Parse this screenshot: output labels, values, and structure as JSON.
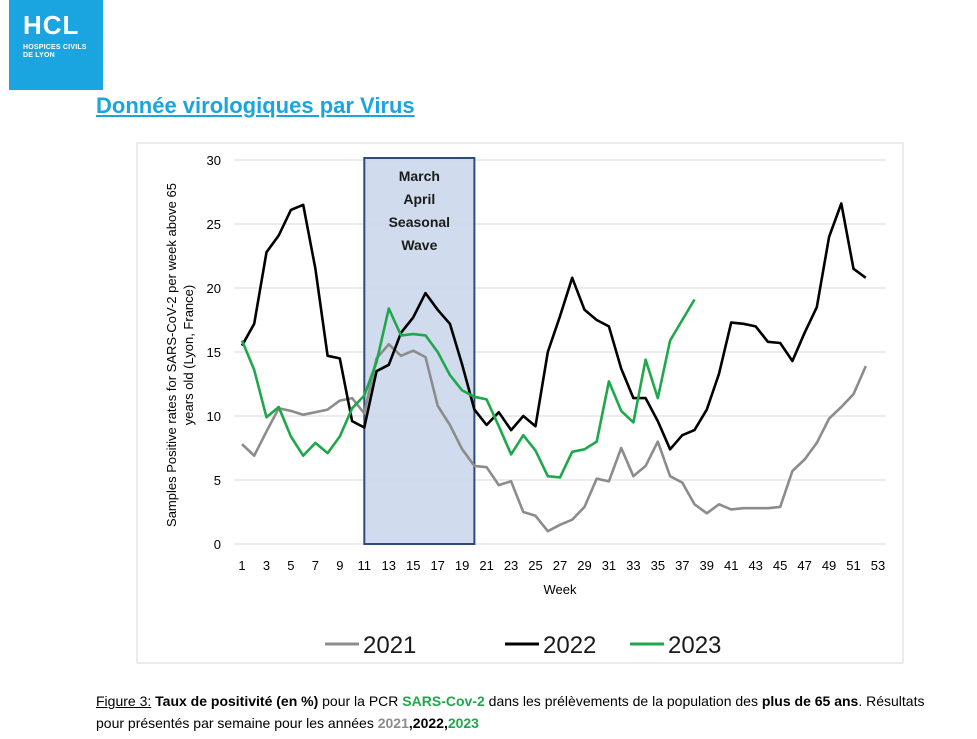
{
  "logo": {
    "main": "HCL",
    "sub_line1": "HOSPICES CIVILS",
    "sub_line2": "DE LYON"
  },
  "title": "Donnée virologiques par Virus",
  "colors": {
    "s2021": "#8c8c8c",
    "s2022": "#000000",
    "s2023": "#1fa84b",
    "wave_fill": "#c8d6ea",
    "wave_border": "#2e4a7a",
    "logo_bg": "#1aa5e0"
  },
  "chart_data": {
    "type": "line",
    "ylabel_line1": "Samples Positive rates for SARS-CoV-2 per week above 65",
    "ylabel_line2": "years old (Lyon, France)",
    "xlabel": "Week",
    "ylim": [
      0,
      30
    ],
    "yticks": [
      "0",
      "5",
      "10",
      "15",
      "20",
      "25",
      "30"
    ],
    "xlim": [
      1,
      53
    ],
    "xticks": [
      "1",
      "3",
      "5",
      "7",
      "9",
      "11",
      "13",
      "15",
      "17",
      "19",
      "21",
      "23",
      "25",
      "27",
      "29",
      "31",
      "33",
      "35",
      "37",
      "39",
      "41",
      "43",
      "45",
      "47",
      "49",
      "51",
      "53"
    ],
    "grid": true,
    "annotation": {
      "lines": [
        "March",
        "April",
        "Seasonal",
        "Wave"
      ],
      "x_range": [
        11,
        20
      ],
      "y_range": [
        0,
        30
      ]
    },
    "series": [
      {
        "name": "2021",
        "x": [
          1,
          2,
          3,
          4,
          5,
          6,
          7,
          8,
          9,
          10,
          11,
          12,
          13,
          14,
          15,
          16,
          17,
          18,
          19,
          20,
          21,
          22,
          23,
          24,
          25,
          26,
          27,
          28,
          29,
          30,
          31,
          32,
          33,
          34,
          35,
          36,
          37,
          38,
          39,
          40,
          41,
          42,
          43,
          44,
          45,
          46,
          47,
          48,
          49,
          50,
          51,
          52
        ],
        "values": [
          7.8,
          6.9,
          8.8,
          10.6,
          10.4,
          10.1,
          10.3,
          10.5,
          11.2,
          11.4,
          10.2,
          14.5,
          15.6,
          14.7,
          15.1,
          14.6,
          10.8,
          9.3,
          7.4,
          6.1,
          6.0,
          4.6,
          4.9,
          2.5,
          2.2,
          1.0,
          1.5,
          1.9,
          2.9,
          5.1,
          4.9,
          7.5,
          5.3,
          6.1,
          8.0,
          5.3,
          4.8,
          3.1,
          2.4,
          3.1,
          2.7,
          2.8,
          2.8,
          2.8,
          2.9,
          5.7,
          6.6,
          7.9,
          9.8,
          10.7,
          11.7,
          13.9
        ]
      },
      {
        "name": "2022",
        "x": [
          1,
          2,
          3,
          4,
          5,
          6,
          7,
          8,
          9,
          10,
          11,
          12,
          13,
          14,
          15,
          16,
          17,
          18,
          19,
          20,
          21,
          22,
          23,
          24,
          25,
          26,
          27,
          28,
          29,
          30,
          31,
          32,
          33,
          34,
          35,
          36,
          37,
          38,
          39,
          40,
          41,
          42,
          43,
          44,
          45,
          46,
          47,
          48,
          49,
          50,
          51,
          52
        ],
        "values": [
          15.5,
          17.2,
          22.8,
          24.1,
          26.1,
          26.5,
          21.5,
          14.7,
          14.5,
          9.6,
          9.1,
          13.5,
          14.0,
          16.5,
          17.7,
          19.6,
          18.3,
          17.2,
          14.0,
          10.5,
          9.3,
          10.3,
          8.9,
          10.0,
          9.2,
          15.0,
          17.8,
          20.8,
          18.3,
          17.5,
          17.0,
          13.7,
          11.4,
          11.4,
          9.6,
          7.4,
          8.5,
          8.9,
          10.5,
          13.3,
          17.3,
          17.2,
          17.0,
          15.8,
          15.7,
          14.3,
          16.5,
          18.5,
          24.0,
          26.6,
          21.5,
          20.8
        ]
      },
      {
        "name": "2023",
        "x": [
          1,
          2,
          3,
          4,
          5,
          6,
          7,
          8,
          9,
          10,
          11,
          12,
          13,
          14,
          15,
          16,
          17,
          18,
          19,
          20,
          21,
          22,
          23,
          24,
          25,
          26,
          27,
          28,
          29,
          30,
          31,
          32,
          33,
          34,
          35,
          36,
          37,
          38
        ],
        "values": [
          15.9,
          13.6,
          9.9,
          10.7,
          8.4,
          6.9,
          7.9,
          7.1,
          8.4,
          10.6,
          11.6,
          14.2,
          18.4,
          16.3,
          16.4,
          16.3,
          15.0,
          13.2,
          12.0,
          11.5,
          11.3,
          9.2,
          7.0,
          8.5,
          7.3,
          5.3,
          5.2,
          7.2,
          7.4,
          8.0,
          12.7,
          10.4,
          9.5,
          14.4,
          11.4,
          15.9,
          17.5,
          19.1
        ]
      }
    ]
  },
  "caption": {
    "label": "Figure 3:",
    "p1": "Taux de positivité (en %)",
    "p2": " pour la PCR ",
    "p3": "SARS-Cov-2",
    "p4": " dans les prélèvements de la population des ",
    "p5": "plus de 65 ans",
    "p6": ". Résultats pour présentés par semaine pour les années ",
    "y2021": "2021",
    "comma1": ",",
    "y2022": "2022",
    "comma2": ",",
    "y2023": "2023"
  }
}
